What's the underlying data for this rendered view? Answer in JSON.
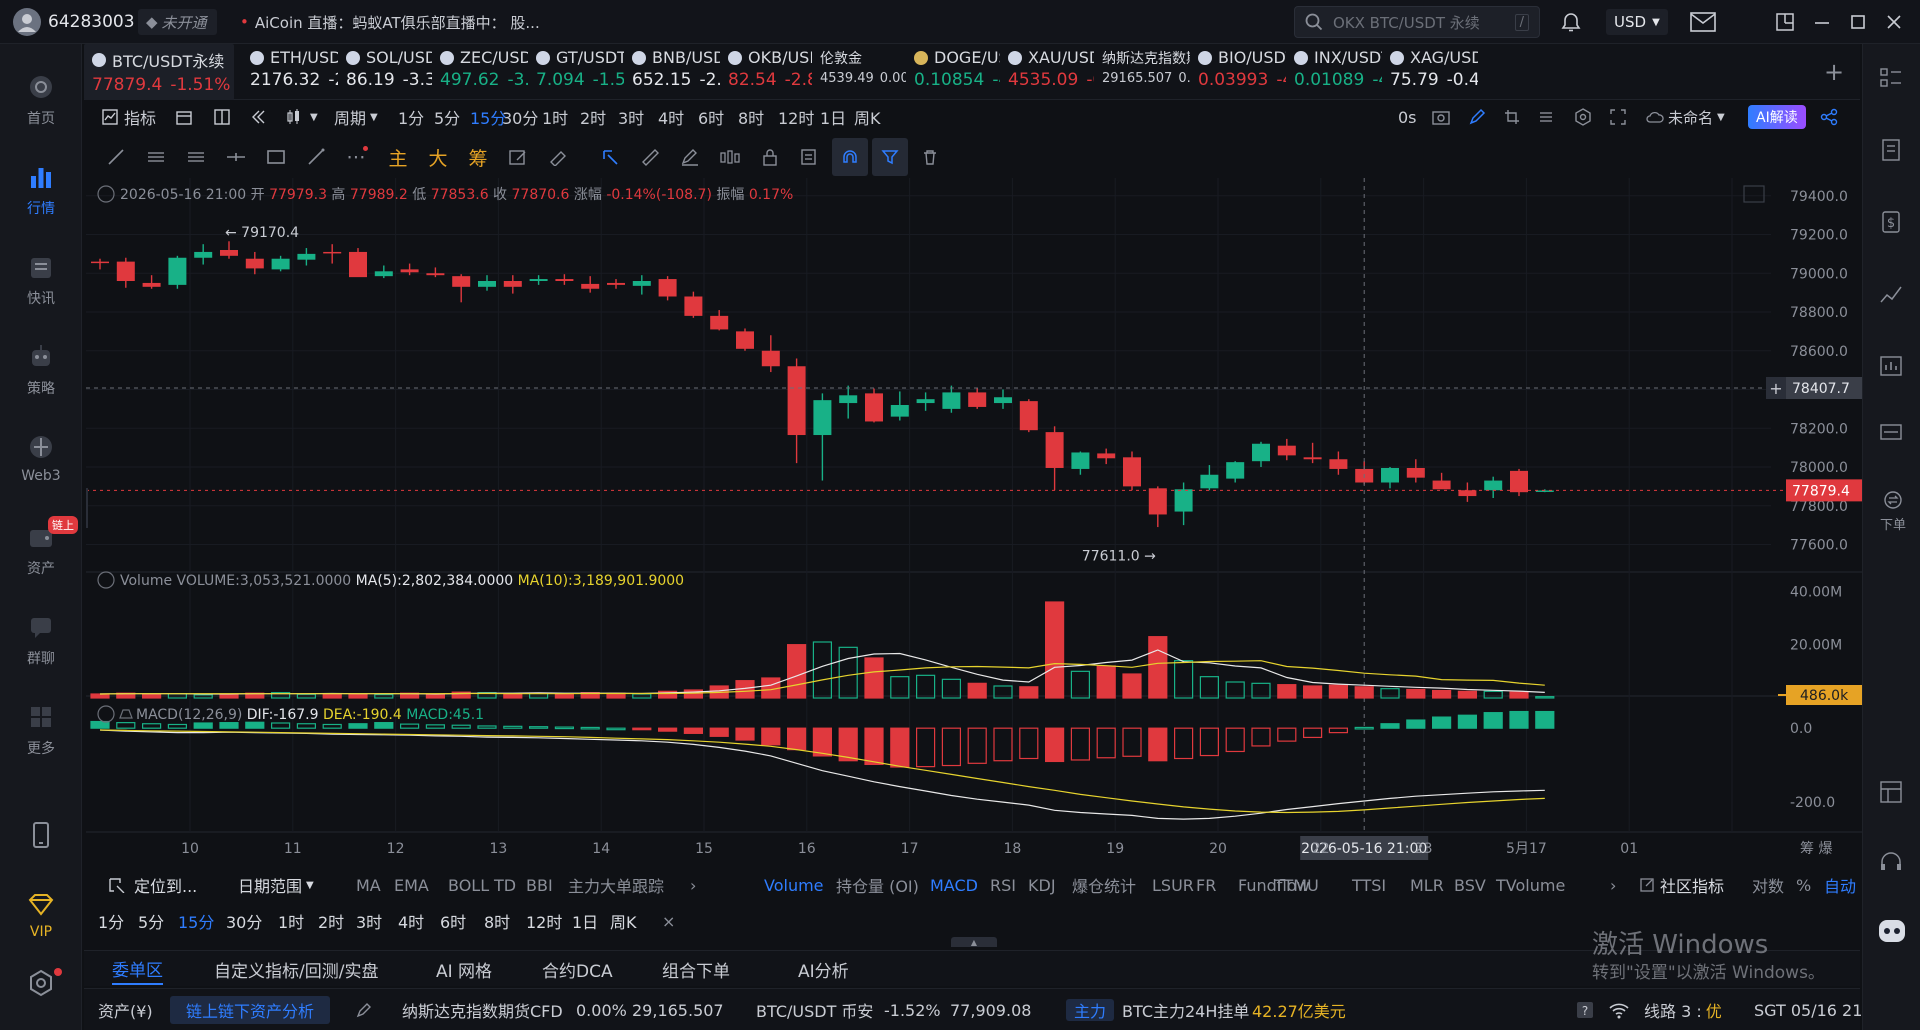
{
  "titlebar": {
    "user_id": "64283003",
    "account_status": "未开通",
    "news_label": "AiCoin 直播：",
    "news_text": "蚂蚁AT俱乐部直播中：  股...",
    "search_placeholder": "OKX BTC/USDT 永续",
    "search_shortcut": "/",
    "currency": "USD"
  },
  "leftnav": [
    {
      "label": "首页",
      "icon": "home-icon"
    },
    {
      "label": "行情",
      "icon": "market-icon"
    },
    {
      "label": "快讯",
      "icon": "news-icon"
    },
    {
      "label": "策略",
      "icon": "strategy-icon"
    },
    {
      "label": "Web3",
      "icon": "web3-icon"
    },
    {
      "label": "资产",
      "icon": "wallet-icon",
      "badge": "链上"
    },
    {
      "label": "群聊",
      "icon": "chat-icon"
    },
    {
      "label": "更多",
      "icon": "more-icon"
    },
    {
      "label": "",
      "icon": "phone-icon"
    },
    {
      "label": "VIP",
      "icon": "vip-icon"
    },
    {
      "label": "",
      "icon": "settings-icon"
    }
  ],
  "tickers": [
    {
      "name": "BTC/USDT永续",
      "price": "77879.4",
      "change": "-1.51%",
      "dir": "red",
      "selected": true
    },
    {
      "name": "ETH/USD",
      "price": "2176.32",
      "change": "-2.",
      "dir": "white"
    },
    {
      "name": "SOL/USD",
      "price": "86.19",
      "change": "-3.39",
      "dir": "white"
    },
    {
      "name": "ZEC/USD",
      "price": "497.62",
      "change": "-3.4",
      "dir": "green"
    },
    {
      "name": "GT/USDT",
      "price": "7.094",
      "change": "-1.57",
      "dir": "green"
    },
    {
      "name": "BNB/USDT",
      "price": "652.15",
      "change": "-2.9",
      "dir": "white"
    },
    {
      "name": "OKB/USDT",
      "price": "82.54",
      "change": "-2.83",
      "dir": "red"
    },
    {
      "name": "伦敦金",
      "price": "4539.49",
      "change": "0.00%",
      "dir": "white"
    },
    {
      "name": "DOGE/USDT",
      "price": "0.10854",
      "change": "-4.",
      "dir": "green"
    },
    {
      "name": "XAU/USD",
      "price": "4535.09",
      "change": "-0.",
      "dir": "red"
    },
    {
      "name": "纳斯达克指数期货",
      "price": "29165.507",
      "change": "0.00",
      "dir": "white"
    },
    {
      "name": "BIO/USDT",
      "price": "0.03993",
      "change": "-4.",
      "dir": "red"
    },
    {
      "name": "INX/USDT",
      "price": "0.01089",
      "change": "-4.",
      "dir": "green"
    },
    {
      "name": "XAG/USD",
      "price": "75.79",
      "change": "-0.45",
      "dir": "white"
    }
  ],
  "toolbar1": {
    "indicator": "指标",
    "period": "周期",
    "intervals": [
      "1分",
      "5分",
      "15分",
      "30分",
      "1时",
      "2时",
      "3时",
      "4时",
      "6时",
      "8时",
      "12时",
      "1日",
      "周K"
    ],
    "active_interval": "15分",
    "countdown": "0s",
    "layout_name": "未命名",
    "ai_button": "AI解读"
  },
  "toolbar2": {
    "labels": [
      "主",
      "大",
      "筹"
    ]
  },
  "colors": {
    "up": "#18b187",
    "down": "#e0393e",
    "accent": "#2f7dff",
    "ma5": "#e8e8e8",
    "ma10": "#e6d32e",
    "bg": "#0f1115"
  },
  "chart_data": {
    "type": "candlestick",
    "symbol": "BTC/USDT永续",
    "interval": "15分",
    "ohlc_header": {
      "time": "2026-05-16 21:00",
      "open_label": "开",
      "open": "77979.3",
      "high_label": "高",
      "high": "77989.2",
      "low_label": "低",
      "low": "77853.6",
      "close_label": "收",
      "close": "77870.6",
      "change_label": "涨幅",
      "change": "-0.14%(-108.7)",
      "amp_label": "振幅",
      "amp": "0.17%"
    },
    "price_axis": [
      "79400.0",
      "79200.0",
      "79000.0",
      "78800.0",
      "78600.0",
      "78400.0",
      "78200.0",
      "78000.0",
      "77800.0",
      "77600.0"
    ],
    "crosshair_price": "78407.7",
    "last_price": "77879.4",
    "high_marker": "79170.4",
    "low_marker": "77611.0",
    "ylim": [
      77520,
      79440
    ],
    "candles": [
      [
        79060,
        79075,
        79020,
        79055
      ],
      [
        79060,
        79080,
        78925,
        78960
      ],
      [
        78950,
        78990,
        78920,
        78930
      ],
      [
        78940,
        79090,
        78920,
        79080
      ],
      [
        79080,
        79150,
        79045,
        79110
      ],
      [
        79120,
        79165,
        79075,
        79090
      ],
      [
        79075,
        79110,
        78995,
        79025
      ],
      [
        79020,
        79090,
        79010,
        79075
      ],
      [
        79070,
        79130,
        79040,
        79100
      ],
      [
        79110,
        79150,
        79050,
        79105
      ],
      [
        79110,
        79130,
        78990,
        78980
      ],
      [
        78985,
        79040,
        78975,
        79010
      ],
      [
        79020,
        79050,
        78990,
        79005
      ],
      [
        79000,
        79030,
        78980,
        78990
      ],
      [
        78985,
        78995,
        78850,
        78930
      ],
      [
        78930,
        78990,
        78910,
        78960
      ],
      [
        78960,
        78990,
        78895,
        78930
      ],
      [
        78960,
        78990,
        78940,
        78970
      ],
      [
        78970,
        78995,
        78940,
        78960
      ],
      [
        78945,
        78985,
        78900,
        78920
      ],
      [
        78950,
        78970,
        78920,
        78940
      ],
      [
        78935,
        78990,
        78890,
        78960
      ],
      [
        78970,
        78985,
        78860,
        78880
      ],
      [
        78880,
        78905,
        78770,
        78780
      ],
      [
        78780,
        78810,
        78705,
        78710
      ],
      [
        78700,
        78715,
        78600,
        78610
      ],
      [
        78600,
        78680,
        78490,
        78520
      ],
      [
        78520,
        78560,
        78020,
        78165
      ],
      [
        78165,
        78380,
        77930,
        78345
      ],
      [
        78330,
        78420,
        78250,
        78370
      ],
      [
        78380,
        78405,
        78230,
        78235
      ],
      [
        78260,
        78390,
        78240,
        78320
      ],
      [
        78330,
        78385,
        78290,
        78350
      ],
      [
        78300,
        78420,
        78280,
        78385
      ],
      [
        78385,
        78410,
        78300,
        78310
      ],
      [
        78330,
        78400,
        78300,
        78360
      ],
      [
        78340,
        78350,
        78180,
        78190
      ],
      [
        78180,
        78210,
        77880,
        77995
      ],
      [
        77990,
        78080,
        77960,
        78075
      ],
      [
        78070,
        78095,
        78015,
        78045
      ],
      [
        78050,
        78080,
        77880,
        77900
      ],
      [
        77890,
        77900,
        77690,
        77755
      ],
      [
        77770,
        77920,
        77700,
        77885
      ],
      [
        77890,
        78010,
        77880,
        77960
      ],
      [
        77940,
        78030,
        77920,
        78025
      ],
      [
        78030,
        78130,
        78000,
        78120
      ],
      [
        78110,
        78145,
        78035,
        78060
      ],
      [
        78050,
        78125,
        78020,
        78040
      ],
      [
        78040,
        78080,
        77960,
        77990
      ],
      [
        77990,
        78030,
        77910,
        77920
      ],
      [
        77920,
        78000,
        77890,
        77995
      ],
      [
        77995,
        78040,
        77920,
        77945
      ],
      [
        77930,
        77970,
        77900,
        77885
      ],
      [
        77880,
        77920,
        77820,
        77850
      ],
      [
        77880,
        77950,
        77840,
        77930
      ],
      [
        77980,
        77990,
        77850,
        77870
      ],
      [
        77875,
        77885,
        77870,
        77879
      ]
    ],
    "volume_panel": {
      "label": "Volume",
      "volume_text": "VOLUME:3,053,521.0000",
      "ma5_text": "MA(5):2,802,384.0000",
      "ma10_text": "MA(10):3,189,901.9000",
      "axis": [
        "40.00M",
        "20.00M"
      ],
      "current_tag": "486.0k",
      "ylim": [
        0,
        42
      ],
      "values": [
        1.5,
        1.8,
        1.4,
        1.6,
        1.2,
        1.5,
        1.8,
        2.0,
        1.4,
        1.6,
        1.5,
        1.3,
        1.8,
        1.5,
        2.2,
        2.0,
        1.6,
        1.7,
        1.5,
        2.0,
        1.8,
        1.5,
        2.5,
        3.0,
        4.5,
        6.5,
        7.5,
        20,
        21,
        19,
        15,
        8,
        8.5,
        7,
        5.5,
        4.5,
        4.2,
        36,
        10,
        12,
        9,
        23,
        14,
        8,
        6,
        5.5,
        5,
        4.5,
        4.8,
        4.2,
        3.5,
        3.2,
        2.8,
        2.5,
        2.5,
        2.2,
        0.5
      ],
      "ma5": [
        1.5,
        1.6,
        1.6,
        1.6,
        1.5,
        1.5,
        1.6,
        1.6,
        1.6,
        1.7,
        1.6,
        1.6,
        1.6,
        1.5,
        1.7,
        1.8,
        1.8,
        1.9,
        1.8,
        1.8,
        1.8,
        1.7,
        1.9,
        2.2,
        2.7,
        3.6,
        4.8,
        8.3,
        11.9,
        14.8,
        16.5,
        16.7,
        14.3,
        11.5,
        8.9,
        6.7,
        6.0,
        11.5,
        12.2,
        13.3,
        14.2,
        18.0,
        13.6,
        13.2,
        12.0,
        11.3,
        7.7,
        5.8,
        5.2,
        4.8,
        4.4,
        4.0,
        3.7,
        3.2,
        2.9,
        2.6,
        2.1
      ],
      "ma10": [
        1.5,
        1.6,
        1.6,
        1.6,
        1.6,
        1.6,
        1.6,
        1.6,
        1.6,
        1.6,
        1.6,
        1.6,
        1.6,
        1.6,
        1.7,
        1.7,
        1.6,
        1.6,
        1.6,
        1.7,
        1.7,
        1.7,
        1.7,
        1.8,
        2.1,
        2.5,
        3.1,
        4.9,
        6.8,
        8.5,
        9.8,
        10.5,
        11.3,
        11.7,
        11.8,
        11.6,
        11.3,
        12.9,
        12.6,
        12.1,
        11.5,
        13.0,
        13.3,
        13.7,
        13.8,
        14.0,
        11.8,
        11.2,
        10.3,
        9.3,
        8.7,
        8.2,
        6.9,
        6.7,
        6.6,
        5.6,
        4.8
      ]
    },
    "macd_panel": {
      "label": "MACD(12,26,9)",
      "dif_text": "DIF:-167.9",
      "dea_text": "DEA:-190.4",
      "macd_text": "MACD:45.1",
      "axis": [
        "0.0",
        "-200.0"
      ],
      "ylim": [
        -270,
        60
      ],
      "hist": [
        18,
        15,
        12,
        10,
        14,
        15,
        16,
        14,
        12,
        10,
        12,
        15,
        11,
        9,
        8,
        6,
        5,
        4,
        3,
        2,
        0,
        -3,
        -8,
        -14,
        -22,
        -32,
        -45,
        -58,
        -75,
        -88,
        -98,
        -105,
        -104,
        -101,
        -95,
        -88,
        -82,
        -90,
        -86,
        -80,
        -76,
        -88,
        -82,
        -74,
        -63,
        -48,
        -35,
        -25,
        -12,
        2,
        12,
        22,
        30,
        35,
        42,
        45,
        45
      ],
      "dif": [
        -5,
        -8,
        -10,
        -12,
        -12,
        -11,
        -12,
        -13,
        -14,
        -16,
        -17,
        -18,
        -19,
        -21,
        -22,
        -24,
        -25,
        -26,
        -28,
        -30,
        -32,
        -34,
        -38,
        -44,
        -52,
        -62,
        -75,
        -95,
        -115,
        -130,
        -145,
        -158,
        -170,
        -182,
        -192,
        -200,
        -208,
        -222,
        -228,
        -232,
        -236,
        -244,
        -246,
        -244,
        -238,
        -230,
        -220,
        -212,
        -204,
        -197,
        -190,
        -184,
        -180,
        -176,
        -172,
        -170,
        -168
      ],
      "dea": [
        -5,
        -6,
        -7,
        -8,
        -9,
        -10,
        -11,
        -12,
        -13,
        -14,
        -15,
        -16,
        -17,
        -18,
        -19,
        -20,
        -21,
        -22,
        -23,
        -25,
        -27,
        -29,
        -31,
        -34,
        -38,
        -43,
        -49,
        -58,
        -68,
        -79,
        -91,
        -103,
        -114,
        -125,
        -136,
        -147,
        -158,
        -168,
        -179,
        -188,
        -197,
        -205,
        -213,
        -219,
        -224,
        -227,
        -228,
        -227,
        -225,
        -221,
        -216,
        -211,
        -206,
        -201,
        -197,
        -193,
        -190
      ]
    },
    "x_axis": [
      "10",
      "11",
      "12",
      "13",
      "14",
      "15",
      "16",
      "17",
      "18",
      "19",
      "20",
      "2026-05-16 21:00",
      "22",
      "23",
      "5月17",
      "01"
    ],
    "x_axis_right": "筹  爆"
  },
  "bottom1": {
    "locate": "定位到...",
    "date_range": "日期范围",
    "indicators": [
      "MA",
      "EMA",
      "BOLL",
      "TD",
      "BBI",
      "主力大单跟踪"
    ],
    "sub_indicators": [
      "Volume",
      "持仓量 (OI)",
      "MACD",
      "RSI",
      "KDJ",
      "爆仓统计",
      "LSUR",
      "FR",
      "Fundflow",
      "TTMU",
      "TTSI",
      "MLR",
      "BSV",
      "TVolume"
    ],
    "community": "社区指标",
    "log": "对数",
    "percent": "%",
    "auto": "自动"
  },
  "bottom2": {
    "intervals": [
      "1分",
      "5分",
      "15分",
      "30分",
      "1时",
      "2时",
      "3时",
      "4时",
      "6时",
      "8时",
      "12时",
      "1日",
      "周K"
    ],
    "active": "15分",
    "close": "×"
  },
  "tabs": [
    "委单区",
    "自定义指标/回测/实盘",
    "AI 网格",
    "合约DCA",
    "组合下单",
    "AI分析"
  ],
  "active_tab": "委单区",
  "statusbar": {
    "assets": "资产(¥)",
    "chain_btn": "链上链下资产分析",
    "nasdaq": "纳斯达克指数期货CFD",
    "nasdaq_change": "0.00%",
    "nasdaq_price": "29,165.507",
    "btc_label": "BTC/USDT 币安",
    "btc_change": "-1.52%",
    "btc_price": "77,909.08",
    "main_label": "主力",
    "main_text": "BTC主力24H挂单",
    "main_value": "42.27亿美元",
    "line_label": "线路 3 :",
    "line_quality": "优",
    "clock": "SGT 05/16 21:48:58"
  },
  "rightbar": {
    "order_label": "下单"
  },
  "watermark": {
    "line1": "激活 Windows",
    "line2": "转到\"设置\"以激活 Windows。"
  }
}
